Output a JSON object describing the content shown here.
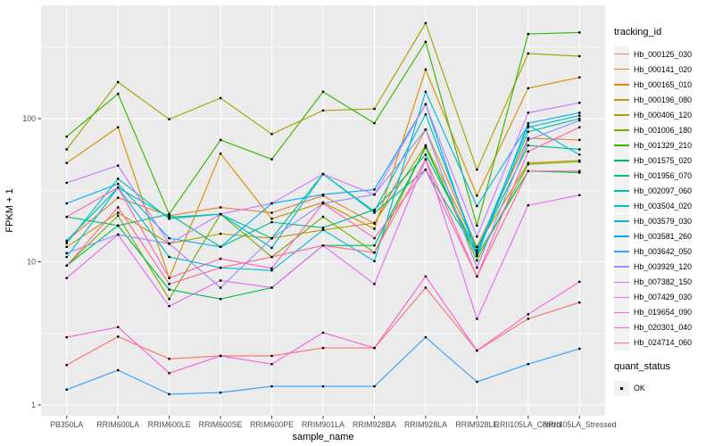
{
  "chart_data": {
    "type": "line",
    "title": "",
    "xlabel": "sample_name",
    "ylabel": "FPKM + 1",
    "y_scale": "log10",
    "ylim": [
      0.72,
      700
    ],
    "y_tick_labels": [
      "1",
      "10",
      "100"
    ],
    "y_tick_values": [
      1,
      10,
      100
    ],
    "y_minor_values": [
      3.1623,
      31.623,
      316.23
    ],
    "grid": true,
    "legend_position": "right",
    "x_categories": [
      "PB350LA",
      "RRIM600LA",
      "RRIM600LE",
      "RRIM600SE",
      "RRIM600PE",
      "RRIM901LA",
      "RRIM928BA",
      "RRIM928LA",
      "RRIM928LE",
      "RRII105LA_Control",
      "RRII105LA_Stressed"
    ],
    "series": [
      {
        "name": "Hb_000125_030",
        "color": "#F8766D",
        "values": [
          1.9,
          3.0,
          2.1,
          2.2,
          2.2,
          2.5,
          2.5,
          6.6,
          2.4,
          4.0,
          5.2
        ]
      },
      {
        "name": "Hb_000141_020",
        "color": "#EA8331",
        "values": [
          14,
          28,
          21,
          24,
          22,
          29,
          18.5,
          84,
          12.7,
          73,
          71
        ]
      },
      {
        "name": "Hb_000165_010",
        "color": "#D89000",
        "values": [
          49,
          87,
          7.7,
          57,
          20,
          26,
          17,
          220,
          29,
          163,
          194
        ]
      },
      {
        "name": "Hb_000196_080",
        "color": "#C09B00",
        "values": [
          12.7,
          22,
          13.4,
          15.7,
          14.6,
          16.7,
          18.7,
          65,
          12.7,
          49,
          51
        ]
      },
      {
        "name": "Hb_000406_120",
        "color": "#A3A500",
        "values": [
          61,
          180,
          99,
          139,
          78,
          114,
          117,
          465,
          44,
          285,
          273
        ]
      },
      {
        "name": "Hb_001006_180",
        "color": "#7CAE00",
        "values": [
          9.4,
          21,
          5.5,
          21.5,
          10.8,
          20.6,
          11.6,
          64,
          10.2,
          48,
          50
        ]
      },
      {
        "name": "Hb_001329_210",
        "color": "#39B600",
        "values": [
          75,
          149,
          21.5,
          71,
          52,
          154,
          93,
          344,
          17.9,
          390,
          400
        ]
      },
      {
        "name": "Hb_001575_020",
        "color": "#00BB4E",
        "values": [
          9.4,
          17.9,
          6.4,
          5.5,
          6.6,
          13,
          13,
          63,
          11,
          43,
          42
        ]
      },
      {
        "name": "Hb_001956_070",
        "color": "#00BF7D",
        "values": [
          20.6,
          17.9,
          21.5,
          12.7,
          18.9,
          17.3,
          23.1,
          56,
          12,
          65,
          61
        ]
      },
      {
        "name": "Hb_002097_060",
        "color": "#00C1A3",
        "values": [
          14,
          33,
          20.5,
          21.5,
          14.6,
          41,
          22,
          44,
          11.5,
          81,
          100
        ]
      },
      {
        "name": "Hb_003504_020",
        "color": "#00BFC4",
        "values": [
          13.5,
          38,
          20,
          21.5,
          12.5,
          41,
          22.5,
          107,
          12,
          87,
          105
        ]
      },
      {
        "name": "Hb_003579_030",
        "color": "#00BAE0",
        "values": [
          10.8,
          33,
          10.8,
          9.1,
          8.7,
          16.7,
          10.1,
          154,
          24.5,
          90,
          56
        ]
      },
      {
        "name": "Hb_003581_260",
        "color": "#00B0F6",
        "values": [
          25.6,
          35,
          14.6,
          12.7,
          25.6,
          29.5,
          32,
          126,
          11,
          93,
          110
        ]
      },
      {
        "name": "Hb_003642_050",
        "color": "#35A2FF",
        "values": [
          1.28,
          1.75,
          1.19,
          1.22,
          1.35,
          1.35,
          1.35,
          2.97,
          1.45,
          1.93,
          2.47
        ]
      },
      {
        "name": "Hb_003929_120",
        "color": "#9590FF",
        "values": [
          11.5,
          15.5,
          13.4,
          6.6,
          14.6,
          25.6,
          29.5,
          84,
          9.1,
          71,
          97
        ]
      },
      {
        "name": "Hb_007382_150",
        "color": "#C77CFF",
        "values": [
          35.6,
          47,
          13.4,
          21.5,
          25.6,
          41,
          29.5,
          126,
          15,
          110,
          129
        ]
      },
      {
        "name": "Hb_007429_030",
        "color": "#E76BF3",
        "values": [
          7.7,
          15.5,
          4.9,
          7.4,
          6.6,
          13,
          7.0,
          52,
          4.0,
          24.8,
          29.2
        ]
      },
      {
        "name": "Hb_019654_090",
        "color": "#FA62DB",
        "values": [
          2.97,
          3.5,
          1.67,
          2.2,
          1.93,
          3.2,
          2.5,
          7.9,
          2.4,
          4.3,
          7.25
        ]
      },
      {
        "name": "Hb_020301_040",
        "color": "#FF62BC",
        "values": [
          20.6,
          33,
          7.7,
          10.5,
          9.0,
          25.6,
          14.6,
          44,
          7.9,
          59,
          87
        ]
      },
      {
        "name": "Hb_024714_060",
        "color": "#FF6A98",
        "values": [
          9.4,
          24,
          7.0,
          9.1,
          10.8,
          13,
          11.6,
          52,
          7.9,
          43,
          43
        ]
      }
    ],
    "point_marker": {
      "shape": "square",
      "color": "#000000"
    }
  },
  "legend": {
    "tracking_title": "tracking_id",
    "quant_title": "quant_status",
    "quant_items": [
      "OK"
    ]
  },
  "style": {
    "panel_bg": "#EBEBEB",
    "grid_color": "#FFFFFF",
    "axis_text_color": "#4D4D4D",
    "text_color": "#000000"
  }
}
